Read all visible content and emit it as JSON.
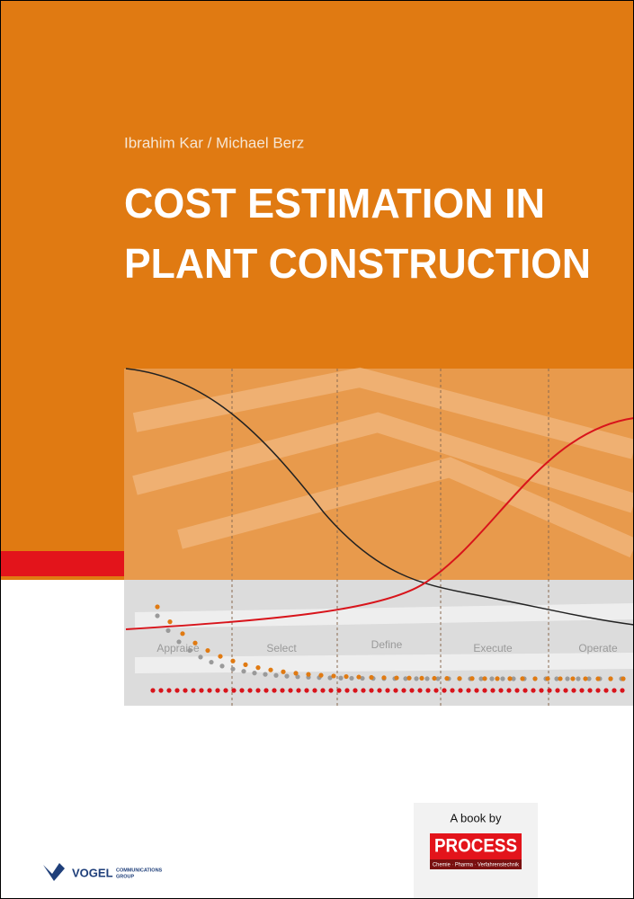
{
  "authors": "Ibrahim Kar / Michael Berz",
  "title": [
    "COST ESTIMATION IN",
    "PLANT CONSTRUCTION"
  ],
  "phases": [
    "Appraise",
    "Select",
    "Define",
    "Execute",
    "Operate"
  ],
  "badge": {
    "caption": "A book by",
    "logo": "PROCESS",
    "tagline": "Chemie · Pharma · Verfahrenstechnik"
  },
  "publisher": {
    "name": "VOGEL",
    "line1": "COMMUNICATIONS",
    "line2": "GROUP"
  }
}
